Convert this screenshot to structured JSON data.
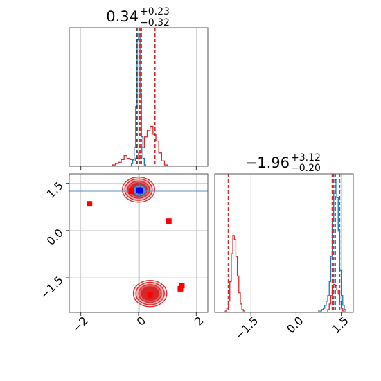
{
  "chart_data": [
    {
      "type": "histogram",
      "panel": "top-left",
      "title_main": "0.34",
      "title_plus": "+0.23",
      "title_minus": "−0.32",
      "xlim": [
        -2.4,
        2.4
      ],
      "xticks": [
        -2,
        0,
        2
      ],
      "xtick_labels": [
        "",
        "",
        ""
      ],
      "grid": true,
      "series": [
        {
          "color": "#d62728",
          "bin_edges": [
            -0.9,
            -0.8,
            -0.7,
            -0.6,
            -0.5,
            -0.4,
            -0.3,
            -0.2,
            -0.1,
            0.0,
            0.1,
            0.2,
            0.3,
            0.4,
            0.5,
            0.6,
            0.7,
            0.8,
            0.9,
            1.0
          ],
          "counts": [
            0.01,
            0.02,
            0.03,
            0.05,
            0.08,
            0.06,
            0.05,
            0.04,
            0.06,
            0.1,
            0.14,
            0.22,
            0.27,
            0.3,
            0.24,
            0.19,
            0.1,
            0.04,
            0.01
          ]
        },
        {
          "color": "#1f77b4",
          "bin_edges": [
            -0.25,
            -0.2,
            -0.15,
            -0.1,
            -0.05,
            0.0,
            0.05,
            0.1,
            0.15,
            0.2,
            0.25
          ],
          "counts": [
            0.02,
            0.05,
            0.14,
            0.45,
            0.95,
            1.0,
            0.55,
            0.22,
            0.06,
            0.01
          ]
        }
      ],
      "vlines": [
        {
          "x": 0.02,
          "color": "#1f77b4"
        },
        {
          "x": 0.1,
          "color": "#1f77b4"
        },
        {
          "x": -0.05,
          "color": "#333333"
        },
        {
          "x": 0.05,
          "color": "#d62728"
        },
        {
          "x": 0.57,
          "color": "#d62728"
        }
      ]
    },
    {
      "type": "scatter",
      "panel": "bottom-left",
      "xlim": [
        -2.4,
        2.4
      ],
      "ylim": [
        -2.6,
        1.8
      ],
      "xticks": [
        -2,
        0,
        2
      ],
      "xtick_labels": [
        "−2",
        "0",
        "2"
      ],
      "yticks": [
        -1.5,
        0.0,
        1.5
      ],
      "ytick_labels": [
        "−1.5",
        "0.0",
        "1.5"
      ],
      "grid": true,
      "guides": {
        "x": 0.02,
        "y": 1.25
      },
      "contours": [
        {
          "cx": 0.4,
          "cy": -2.0,
          "rx": 0.58,
          "ry": 0.42
        },
        {
          "cx": 0.0,
          "cy": 1.3,
          "rx": 0.56,
          "ry": 0.4
        }
      ],
      "red_markers": {
        "x": [
          -1.7,
          -0.25,
          1.05,
          0.4,
          1.5,
          1.45
        ],
        "y": [
          0.85,
          1.25,
          0.3,
          -2.05,
          -1.75,
          -1.85
        ],
        "color": "#ff0000"
      },
      "blue_markers": {
        "x": [
          0.02,
          0.06
        ],
        "y": [
          1.28,
          1.26
        ],
        "color": "#0000ff"
      }
    },
    {
      "type": "histogram",
      "panel": "bottom-right",
      "title_main": "−1.96",
      "title_plus": "+3.12",
      "title_minus": "−0.20",
      "xlim": [
        -2.7,
        1.9
      ],
      "xticks": [
        -1.5,
        0.0,
        1.5
      ],
      "xtick_labels": [
        "−1.5",
        "0.0",
        "1.5"
      ],
      "grid": true,
      "series": [
        {
          "color": "#d62728",
          "bin_edges": [
            -2.35,
            -2.3,
            -2.25,
            -2.2,
            -2.15,
            -2.1,
            -2.05,
            -2.0,
            -1.95,
            -1.9,
            -1.85,
            -1.8,
            -1.75,
            -1.7
          ],
          "counts": [
            0.01,
            0.03,
            0.08,
            0.22,
            0.42,
            0.55,
            0.52,
            0.4,
            0.26,
            0.14,
            0.06,
            0.02,
            0.01
          ]
        },
        {
          "color": "#d62728",
          "bin_edges": [
            1.05,
            1.1,
            1.15,
            1.2,
            1.25,
            1.3,
            1.35,
            1.4,
            1.45,
            1.5,
            1.55,
            1.6
          ],
          "counts": [
            0.02,
            0.06,
            0.12,
            0.18,
            0.2,
            0.19,
            0.16,
            0.13,
            0.08,
            0.03,
            0.01
          ]
        },
        {
          "color": "#1f77b4",
          "bin_edges": [
            0.75,
            0.8,
            0.85,
            0.9,
            0.95,
            1.0,
            1.05,
            1.1,
            1.15,
            1.2,
            1.25,
            1.3,
            1.35,
            1.4,
            1.45,
            1.5,
            1.55,
            1.6,
            1.65
          ],
          "counts": [
            0.01,
            0.01,
            0.02,
            0.03,
            0.05,
            0.08,
            0.12,
            0.22,
            0.4,
            0.65,
            0.85,
            0.95,
            0.82,
            0.58,
            0.3,
            0.12,
            0.05,
            0.02
          ]
        }
      ],
      "vlines": [
        {
          "x": -2.25,
          "color": "#d62728"
        },
        {
          "x": 1.2,
          "color": "#d62728"
        },
        {
          "x": 1.25,
          "color": "#1f77b4"
        },
        {
          "x": 1.45,
          "color": "#1f77b4"
        },
        {
          "x": 1.3,
          "color": "#333333"
        }
      ]
    }
  ]
}
